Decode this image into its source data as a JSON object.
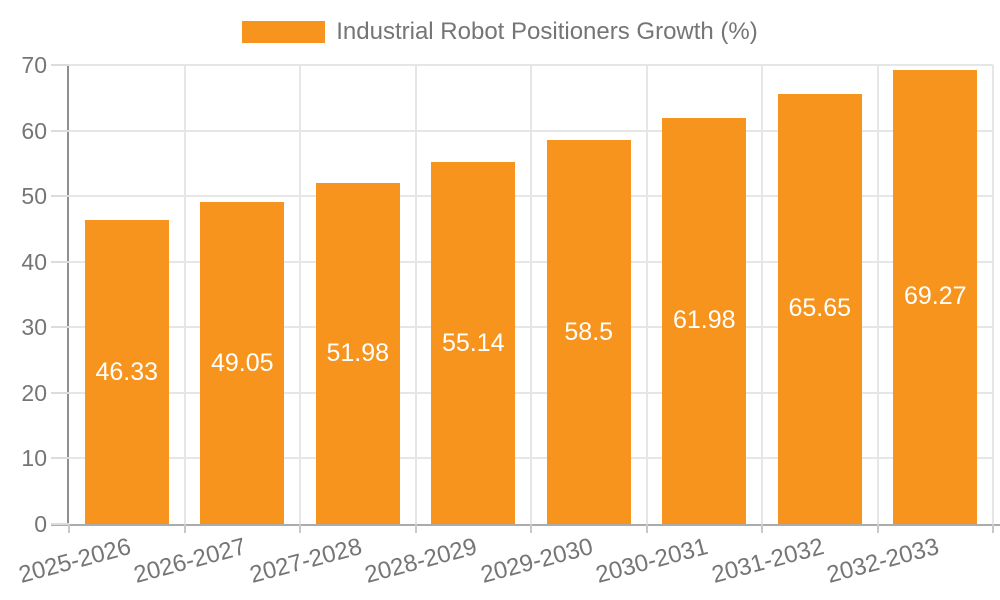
{
  "legend": {
    "label": "Industrial Robot Positioners Growth (%)"
  },
  "chart_data": {
    "type": "bar",
    "title": "",
    "xlabel": "",
    "ylabel": "",
    "categories": [
      "2025-2026",
      "2026-2027",
      "2027-2028",
      "2028-2029",
      "2029-2030",
      "2030-2031",
      "2031-2032",
      "2032-2033"
    ],
    "series": [
      {
        "name": "Industrial Robot Positioners Growth (%)",
        "values": [
          46.33,
          49.05,
          51.98,
          55.14,
          58.5,
          61.98,
          65.65,
          69.27
        ]
      }
    ],
    "value_labels": [
      "46.33",
      "49.05",
      "51.98",
      "55.14",
      "58.5",
      "61.98",
      "65.65",
      "69.27"
    ],
    "ylim": [
      0,
      70
    ],
    "yticks": [
      0,
      10,
      20,
      30,
      40,
      50,
      60,
      70
    ],
    "grid": true,
    "legend_position": "top-center",
    "bar_label_position": "inside-center",
    "colors": {
      "bar": "#f7941e",
      "bar_label": "#ffffff",
      "axis_text": "#757575",
      "axis_line_y": "#8f8f8f",
      "axis_line_x": "#ababab",
      "gridline": "#e6e6e6",
      "background": "#ffffff"
    }
  }
}
